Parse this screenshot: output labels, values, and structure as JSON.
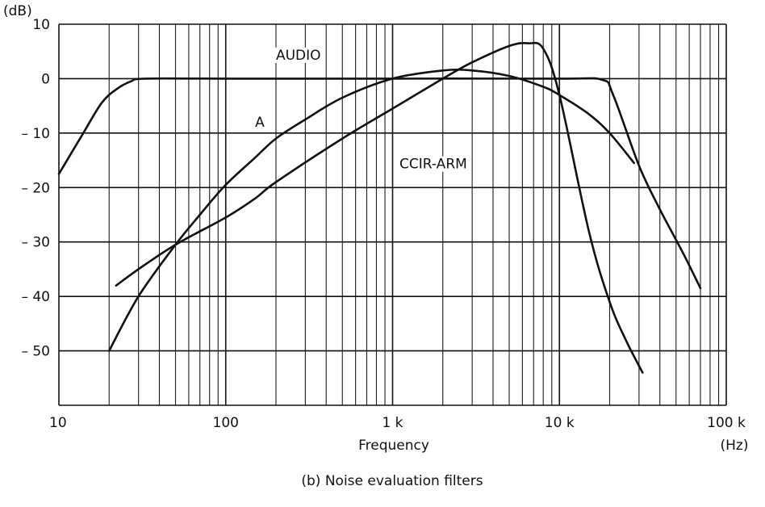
{
  "chart_data": {
    "type": "line",
    "title": "",
    "caption": "(b)  Noise evaluation filters",
    "xlabel": "Frequency",
    "xunit": "(Hz)",
    "ylabel": "(dB)",
    "xscale": "log",
    "xlim": [
      10,
      100000
    ],
    "ylim": [
      -60,
      10
    ],
    "x_tick_values": [
      10,
      100,
      1000,
      10000,
      100000
    ],
    "x_tick_labels": [
      "10",
      "100",
      "1 k",
      "10 k",
      "100 k"
    ],
    "y_tick_values": [
      10,
      0,
      -10,
      -20,
      -30,
      -40,
      -50
    ],
    "y_tick_labels": [
      "10",
      "0",
      "– 10",
      "– 20",
      "– 30",
      "– 40",
      "– 50"
    ],
    "grid": true,
    "series": [
      {
        "name": "AUDIO",
        "label_at": [
          200,
          3.5
        ],
        "points": [
          [
            10,
            -17.5
          ],
          [
            14,
            -10
          ],
          [
            18,
            -4.5
          ],
          [
            22,
            -2
          ],
          [
            27,
            -0.5
          ],
          [
            33,
            0
          ],
          [
            100,
            0
          ],
          [
            1000,
            0
          ],
          [
            10000,
            0
          ],
          [
            18000,
            -0.2
          ],
          [
            21000,
            -3
          ],
          [
            30000,
            -16
          ],
          [
            40000,
            -24
          ],
          [
            55000,
            -32
          ],
          [
            70000,
            -38.5
          ]
        ]
      },
      {
        "name": "A",
        "label_at": [
          150,
          -8.8
        ],
        "points": [
          [
            20,
            -50
          ],
          [
            30,
            -40
          ],
          [
            50,
            -30.5
          ],
          [
            70,
            -25
          ],
          [
            100,
            -19.5
          ],
          [
            150,
            -14.5
          ],
          [
            200,
            -11
          ],
          [
            300,
            -7.5
          ],
          [
            500,
            -3.5
          ],
          [
            1000,
            0
          ],
          [
            2000,
            1.5
          ],
          [
            3000,
            1.5
          ],
          [
            5000,
            0.5
          ],
          [
            8000,
            -1.5
          ],
          [
            10000,
            -3
          ],
          [
            15000,
            -6.5
          ],
          [
            20000,
            -10
          ],
          [
            28000,
            -15.5
          ]
        ]
      },
      {
        "name": "CCIR-ARM",
        "label_at": [
          1100,
          -16.5
        ],
        "points": [
          [
            22,
            -38
          ],
          [
            30,
            -35
          ],
          [
            50,
            -30.5
          ],
          [
            100,
            -25.5
          ],
          [
            150,
            -22
          ],
          [
            200,
            -19
          ],
          [
            500,
            -11
          ],
          [
            1000,
            -5.5
          ],
          [
            2000,
            0
          ],
          [
            3000,
            3
          ],
          [
            5000,
            6
          ],
          [
            6500,
            6.5
          ],
          [
            8000,
            5.5
          ],
          [
            10000,
            -3
          ],
          [
            15000,
            -28
          ],
          [
            20000,
            -41
          ],
          [
            25000,
            -48
          ],
          [
            31500,
            -54
          ]
        ]
      }
    ]
  }
}
